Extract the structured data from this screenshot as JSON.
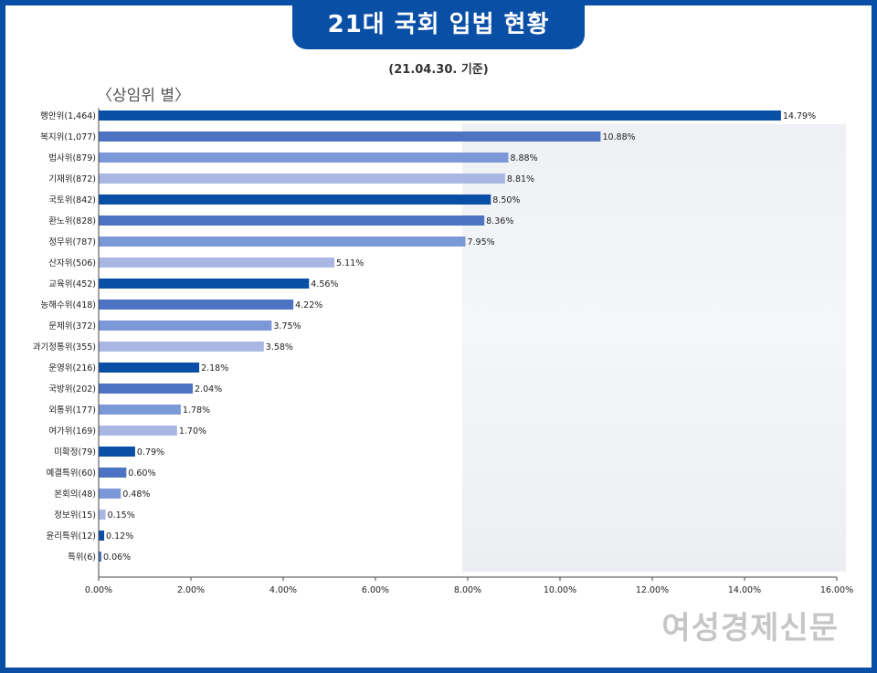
{
  "header": {
    "title": "21대 국회 입법 현황",
    "subtitle": "(21.04.30. 기준)",
    "group_label": "〈상임위 별〉"
  },
  "watermark": "여성경제신문",
  "colors": {
    "border": "#0a4fa6",
    "bar_palette": [
      "#0a4fa6",
      "#4d74c2",
      "#7c98d6",
      "#a9b8e3"
    ]
  },
  "chart_data": {
    "type": "bar",
    "orientation": "horizontal",
    "categories": [
      "행안위(1,464)",
      "복지위(1,077)",
      "법사위(879)",
      "기재위(872)",
      "국토위(842)",
      "환노위(828)",
      "정무위(787)",
      "산자위(506)",
      "교육위(452)",
      "농해수위(418)",
      "문체위(372)",
      "과기정통위(355)",
      "운영위(216)",
      "국방위(202)",
      "외통위(177)",
      "여가위(169)",
      "미확정(79)",
      "예결특위(60)",
      "본회의(48)",
      "정보위(15)",
      "윤리특위(12)",
      "특위(6)"
    ],
    "values": [
      14.79,
      10.88,
      8.88,
      8.81,
      8.5,
      8.36,
      7.95,
      5.11,
      4.56,
      4.22,
      3.75,
      3.58,
      2.18,
      2.04,
      1.78,
      1.7,
      0.79,
      0.6,
      0.48,
      0.15,
      0.12,
      0.06
    ],
    "value_labels": [
      "14.79%",
      "10.88%",
      "8.88%",
      "8.81%",
      "8.50%",
      "8.36%",
      "7.95%",
      "5.11%",
      "4.56%",
      "4.22%",
      "3.75%",
      "3.58%",
      "2.18%",
      "2.04%",
      "1.78%",
      "1.70%",
      "0.79%",
      "0.60%",
      "0.48%",
      "0.15%",
      "0.12%",
      "0.06%"
    ],
    "xlim": [
      0,
      16
    ],
    "xticks": [
      0,
      2,
      4,
      6,
      8,
      10,
      12,
      14,
      16
    ],
    "xtick_labels": [
      "0.00%",
      "2.00%",
      "4.00%",
      "6.00%",
      "8.00%",
      "10.00%",
      "12.00%",
      "14.00%",
      "16.00%"
    ],
    "grid": false,
    "legend": "none"
  }
}
